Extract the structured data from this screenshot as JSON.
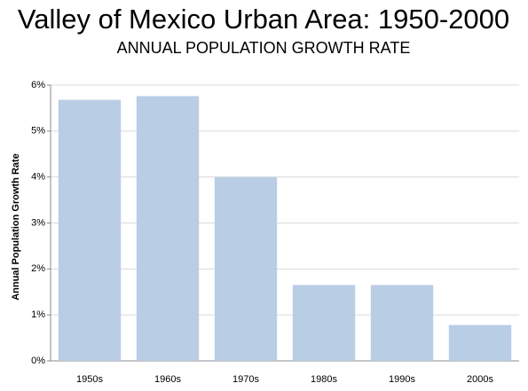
{
  "chart_data": {
    "type": "bar",
    "title": "Valley of Mexico  Urban Area: 1950-2000",
    "subtitle": "ANNUAL POPULATION GROWTH RATE",
    "y_label": "Annual Population Growth Rate",
    "categories": [
      "1950s",
      "1960s",
      "1970s",
      "1980s",
      "1990s",
      "2000s"
    ],
    "values": [
      5.68,
      5.76,
      4.0,
      1.65,
      1.65,
      0.78
    ],
    "color": "#b9cde5",
    "ylim": [
      0,
      6
    ],
    "yticks": [
      {
        "value": 0,
        "label": "0%"
      },
      {
        "value": 1,
        "label": "1%"
      },
      {
        "value": 2,
        "label": "2%"
      },
      {
        "value": 3,
        "label": "3%"
      },
      {
        "value": 4,
        "label": "4%"
      },
      {
        "value": 5,
        "label": "5%"
      },
      {
        "value": 6,
        "label": "6%"
      }
    ],
    "grid": true
  }
}
